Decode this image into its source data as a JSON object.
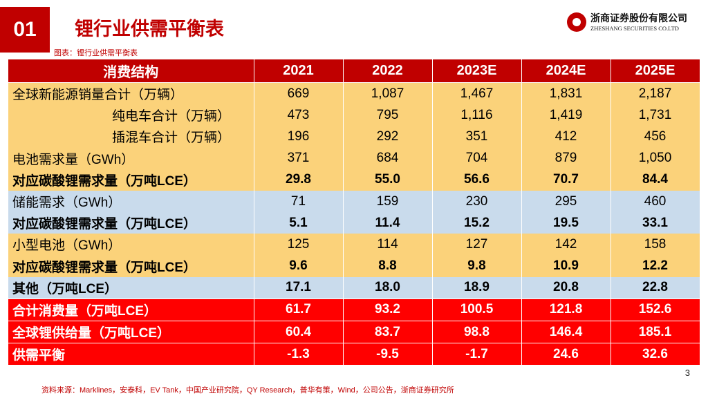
{
  "header": {
    "badge": "01",
    "title": "锂行业供需平衡表"
  },
  "logo": {
    "cn": "浙商证券股份有限公司",
    "en": "ZHESHANG SECURITIES CO.LTD"
  },
  "caption": "图表：锂行业供需平衡表",
  "table": {
    "columns": [
      "消费结构",
      "2021",
      "2022",
      "2023E",
      "2024E",
      "2025E"
    ],
    "rows": [
      {
        "label": "全球新能源销量合计（万辆）",
        "values": [
          "669",
          "1,087",
          "1,467",
          "1,831",
          "2,187"
        ]
      },
      {
        "label": "纯电车合计（万辆）",
        "values": [
          "473",
          "795",
          "1,116",
          "1,419",
          "1,731"
        ]
      },
      {
        "label": "插混车合计（万辆）",
        "values": [
          "196",
          "292",
          "351",
          "412",
          "456"
        ]
      },
      {
        "label": "电池需求量（GWh）",
        "values": [
          "371",
          "684",
          "704",
          "879",
          "1,050"
        ]
      },
      {
        "label": "对应碳酸锂需求量（万吨LCE）",
        "values": [
          "29.8",
          "55.0",
          "56.6",
          "70.7",
          "84.4"
        ]
      },
      {
        "label": "储能需求（GWh）",
        "values": [
          "71",
          "159",
          "230",
          "295",
          "460"
        ]
      },
      {
        "label": "对应碳酸锂需求量（万吨LCE）",
        "values": [
          "5.1",
          "11.4",
          "15.2",
          "19.5",
          "33.1"
        ]
      },
      {
        "label": "小型电池（GWh）",
        "values": [
          "125",
          "114",
          "127",
          "142",
          "158"
        ]
      },
      {
        "label": "对应碳酸锂需求量（万吨LCE）",
        "values": [
          "9.6",
          "8.8",
          "9.8",
          "10.9",
          "12.2"
        ]
      },
      {
        "label": "其他（万吨LCE）",
        "values": [
          "17.1",
          "18.0",
          "18.9",
          "20.8",
          "22.8"
        ]
      },
      {
        "label": "合计消费量（万吨LCE）",
        "values": [
          "61.7",
          "93.2",
          "100.5",
          "121.8",
          "152.6"
        ]
      },
      {
        "label": "全球锂供给量（万吨LCE）",
        "values": [
          "60.4",
          "83.7",
          "98.8",
          "146.4",
          "185.1"
        ]
      },
      {
        "label": "供需平衡",
        "values": [
          "-1.3",
          "-9.5",
          "-1.7",
          "24.6",
          "32.6"
        ]
      }
    ]
  },
  "page_number": "3",
  "source": "资料来源：Marklines，安泰科，EV Tank，中国产业研究院，QY Research，普华有策，Wind，公司公告，浙商证券研究所",
  "colors": {
    "brand_red": "#c00000",
    "row_yellow": "#fbd27a",
    "row_blue": "#c9dbec",
    "row_red": "#ff0000"
  }
}
